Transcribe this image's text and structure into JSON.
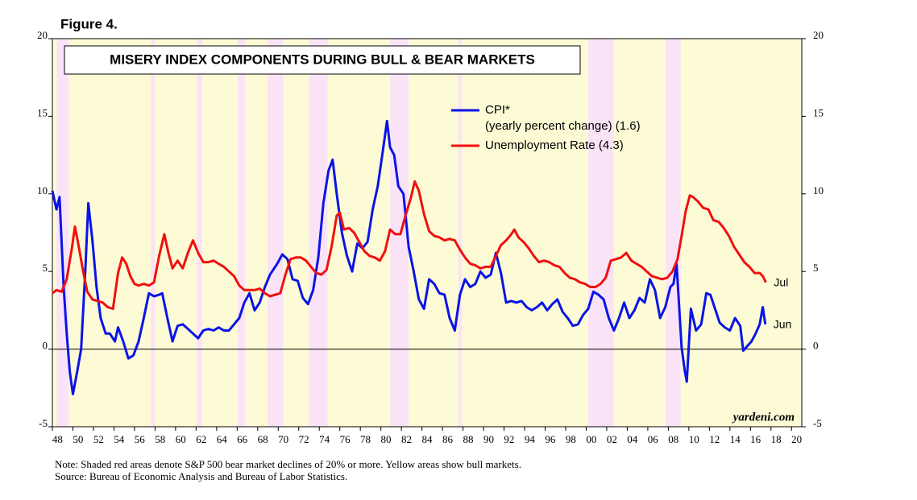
{
  "chart_data": {
    "type": "line",
    "figure_label": "Figure 4.",
    "title": "MISERY INDEX COMPONENTS DURING BULL & BEAR MARKETS",
    "watermark": "yardeni.com",
    "note": "Note: Shaded red areas denote S&P 500 bear market declines of 20% or more. Yellow areas show bull markets.",
    "source": "Source: Bureau of Economic Analysis and Bureau of Labor Statistics.",
    "bull_color": "#fdfbd6",
    "bear_color": "#fbe3f7",
    "bear_markets": [
      [
        1948.4,
        1949.6
      ],
      [
        1957.6,
        1958.0
      ],
      [
        1962.05,
        1962.6
      ],
      [
        1966.05,
        1966.8
      ],
      [
        1968.95,
        1970.5
      ],
      [
        1973.0,
        1974.8
      ],
      [
        1980.9,
        1982.7
      ],
      [
        1987.55,
        1987.9
      ],
      [
        2000.2,
        2002.7
      ],
      [
        2007.75,
        2009.2
      ]
    ],
    "xlim": [
      1948,
      2021
    ],
    "xticks": [
      {
        "value": 1948,
        "label": "48"
      },
      {
        "value": 1950,
        "label": "50"
      },
      {
        "value": 1952,
        "label": "52"
      },
      {
        "value": 1954,
        "label": "54"
      },
      {
        "value": 1956,
        "label": "56"
      },
      {
        "value": 1958,
        "label": "58"
      },
      {
        "value": 1960,
        "label": "60"
      },
      {
        "value": 1962,
        "label": "62"
      },
      {
        "value": 1964,
        "label": "64"
      },
      {
        "value": 1966,
        "label": "66"
      },
      {
        "value": 1968,
        "label": "68"
      },
      {
        "value": 1970,
        "label": "70"
      },
      {
        "value": 1972,
        "label": "72"
      },
      {
        "value": 1974,
        "label": "74"
      },
      {
        "value": 1976,
        "label": "76"
      },
      {
        "value": 1978,
        "label": "78"
      },
      {
        "value": 1980,
        "label": "80"
      },
      {
        "value": 1982,
        "label": "82"
      },
      {
        "value": 1984,
        "label": "84"
      },
      {
        "value": 1986,
        "label": "86"
      },
      {
        "value": 1988,
        "label": "88"
      },
      {
        "value": 1990,
        "label": "90"
      },
      {
        "value": 1992,
        "label": "92"
      },
      {
        "value": 1994,
        "label": "94"
      },
      {
        "value": 1996,
        "label": "96"
      },
      {
        "value": 1998,
        "label": "98"
      },
      {
        "value": 2000,
        "label": "00"
      },
      {
        "value": 2002,
        "label": "02"
      },
      {
        "value": 2004,
        "label": "04"
      },
      {
        "value": 2006,
        "label": "06"
      },
      {
        "value": 2008,
        "label": "08"
      },
      {
        "value": 2010,
        "label": "10"
      },
      {
        "value": 2012,
        "label": "12"
      },
      {
        "value": 2014,
        "label": "14"
      },
      {
        "value": 2016,
        "label": "16"
      },
      {
        "value": 2018,
        "label": "18"
      },
      {
        "value": 2020,
        "label": "20"
      }
    ],
    "ylim": [
      -5,
      20
    ],
    "yticks": [
      -5,
      0,
      5,
      10,
      15,
      20
    ],
    "y2lim": [
      -5,
      20
    ],
    "y2ticks": [
      -5,
      0,
      5,
      10,
      15,
      20
    ],
    "series": [
      {
        "name": "CPI*",
        "name_detail": "(yearly percent change) (1.6)",
        "end_label": "Jun",
        "color": "#0a14e6",
        "x": [
          1948.0,
          1948.4,
          1948.7,
          1949.1,
          1949.4,
          1949.7,
          1950.0,
          1950.4,
          1950.8,
          1951.2,
          1951.5,
          1951.9,
          1952.3,
          1952.7,
          1953.2,
          1953.6,
          1954.1,
          1954.4,
          1954.9,
          1955.4,
          1955.9,
          1956.4,
          1956.9,
          1957.4,
          1957.9,
          1958.4,
          1958.7,
          1959.2,
          1959.7,
          1960.2,
          1960.7,
          1961.2,
          1961.7,
          1962.2,
          1962.7,
          1963.2,
          1963.7,
          1964.2,
          1964.7,
          1965.2,
          1965.7,
          1966.2,
          1966.7,
          1967.2,
          1967.7,
          1968.2,
          1968.7,
          1969.2,
          1969.9,
          1970.4,
          1970.9,
          1971.4,
          1971.9,
          1972.4,
          1972.9,
          1973.4,
          1973.9,
          1974.4,
          1974.9,
          1975.3,
          1975.7,
          1976.2,
          1976.7,
          1977.2,
          1977.7,
          1978.2,
          1978.7,
          1979.2,
          1979.7,
          1980.2,
          1980.6,
          1980.9,
          1981.3,
          1981.7,
          1982.2,
          1982.7,
          1983.2,
          1983.7,
          1984.2,
          1984.7,
          1985.2,
          1985.7,
          1986.2,
          1986.7,
          1987.2,
          1987.7,
          1988.2,
          1988.7,
          1989.2,
          1989.7,
          1990.2,
          1990.7,
          1991.2,
          1991.7,
          1992.2,
          1992.7,
          1993.2,
          1993.7,
          1994.2,
          1994.7,
          1995.2,
          1995.7,
          1996.2,
          1996.7,
          1997.2,
          1997.7,
          1998.2,
          1998.7,
          1999.2,
          1999.7,
          2000.2,
          2000.7,
          2001.2,
          2001.7,
          2002.2,
          2002.7,
          2003.2,
          2003.7,
          2004.2,
          2004.7,
          2005.2,
          2005.7,
          2006.2,
          2006.7,
          2007.2,
          2007.7,
          2008.2,
          2008.5,
          2008.8,
          2009.3,
          2009.6,
          2009.8,
          2010.2,
          2010.7,
          2011.2,
          2011.7,
          2012.1,
          2012.5,
          2013.0,
          2013.5,
          2014.0,
          2014.5,
          2015.0,
          2015.3,
          2015.7,
          2016.1,
          2016.5,
          2016.9,
          2017.2,
          2017.45
        ],
        "values": [
          10.2,
          9.0,
          9.8,
          4,
          1,
          -1.5,
          -2.9,
          -1.5,
          0,
          5,
          9.4,
          7,
          4,
          2,
          1,
          1,
          0.5,
          1.4,
          0.5,
          -0.6,
          -0.4,
          0.5,
          2.0,
          3.6,
          3.4,
          3.5,
          3.6,
          2.0,
          0.5,
          1.5,
          1.6,
          1.3,
          1.0,
          0.7,
          1.2,
          1.3,
          1.2,
          1.4,
          1.2,
          1.2,
          1.6,
          2.0,
          3.0,
          3.6,
          2.5,
          3.0,
          4.0,
          4.8,
          5.5,
          6.1,
          5.8,
          4.5,
          4.4,
          3.3,
          2.9,
          3.8,
          5.9,
          9.4,
          11.5,
          12.2,
          10.0,
          7.5,
          6.0,
          5.0,
          6.8,
          6.5,
          6.9,
          9.0,
          10.5,
          12.8,
          14.7,
          13.0,
          12.5,
          10.5,
          10.0,
          6.6,
          5.0,
          3.2,
          2.6,
          4.5,
          4.2,
          3.6,
          3.5,
          2.0,
          1.2,
          3.5,
          4.5,
          4.0,
          4.2,
          5.0,
          4.6,
          4.8,
          6.2,
          4.9,
          3.0,
          3.1,
          3.0,
          3.1,
          2.7,
          2.5,
          2.7,
          3.0,
          2.5,
          2.9,
          3.2,
          2.4,
          2.0,
          1.5,
          1.6,
          2.2,
          2.6,
          3.7,
          3.5,
          3.2,
          2.0,
          1.2,
          2.0,
          3.0,
          2.0,
          2.5,
          3.3,
          3.0,
          4.5,
          3.8,
          2.0,
          2.7,
          4.0,
          4.2,
          5.5,
          0.1,
          -1.4,
          -2.1,
          2.6,
          1.2,
          1.6,
          3.6,
          3.5,
          2.7,
          1.7,
          1.4,
          1.2,
          2.0,
          1.5,
          -0.1,
          0.2,
          0.5,
          1.0,
          1.6,
          2.7,
          1.6
        ]
      },
      {
        "name": "Unemployment Rate (4.3)",
        "end_label": "Jul",
        "color": "#f01010",
        "x": [
          1948.0,
          1948.4,
          1948.9,
          1949.4,
          1949.9,
          1950.2,
          1950.6,
          1951.0,
          1951.4,
          1951.9,
          1952.4,
          1952.9,
          1953.4,
          1953.9,
          1954.4,
          1954.8,
          1955.2,
          1955.6,
          1956.0,
          1956.4,
          1956.9,
          1957.4,
          1957.9,
          1958.4,
          1958.9,
          1959.3,
          1959.7,
          1960.2,
          1960.7,
          1961.2,
          1961.7,
          1962.2,
          1962.7,
          1963.2,
          1963.7,
          1964.2,
          1964.7,
          1965.2,
          1965.7,
          1966.2,
          1966.7,
          1967.2,
          1967.7,
          1968.2,
          1968.7,
          1969.2,
          1969.7,
          1970.2,
          1970.7,
          1971.2,
          1971.7,
          1972.2,
          1972.7,
          1973.2,
          1973.7,
          1974.2,
          1974.7,
          1975.2,
          1975.7,
          1976.0,
          1976.4,
          1976.9,
          1977.4,
          1977.9,
          1978.4,
          1978.9,
          1979.4,
          1979.9,
          1980.4,
          1980.9,
          1981.4,
          1981.9,
          1982.4,
          1982.9,
          1983.3,
          1983.7,
          1984.2,
          1984.7,
          1985.2,
          1985.7,
          1986.2,
          1986.7,
          1987.2,
          1987.7,
          1988.2,
          1988.7,
          1989.2,
          1989.7,
          1990.2,
          1990.7,
          1991.2,
          1991.7,
          1992.2,
          1992.7,
          1993.0,
          1993.4,
          1993.9,
          1994.4,
          1994.9,
          1995.4,
          1995.9,
          1996.4,
          1996.9,
          1997.4,
          1997.9,
          1998.4,
          1998.9,
          1999.4,
          1999.9,
          2000.4,
          2000.9,
          2001.4,
          2001.9,
          2002.4,
          2002.9,
          2003.4,
          2003.9,
          2004.4,
          2004.9,
          2005.4,
          2005.9,
          2006.4,
          2006.9,
          2007.4,
          2007.9,
          2008.4,
          2008.9,
          2009.3,
          2009.7,
          2010.1,
          2010.4,
          2010.9,
          2011.4,
          2011.9,
          2012.4,
          2012.9,
          2013.4,
          2013.9,
          2014.4,
          2014.9,
          2015.4,
          2015.9,
          2016.4,
          2016.9,
          2017.2,
          2017.5
        ],
        "values": [
          3.6,
          3.8,
          3.7,
          4.5,
          6.5,
          7.9,
          6.5,
          5.0,
          3.7,
          3.2,
          3.1,
          3.0,
          2.7,
          2.6,
          4.9,
          5.9,
          5.5,
          4.7,
          4.2,
          4.1,
          4.2,
          4.1,
          4.3,
          6.0,
          7.4,
          6.2,
          5.2,
          5.7,
          5.2,
          6.2,
          7.0,
          6.2,
          5.6,
          5.6,
          5.7,
          5.5,
          5.3,
          5.0,
          4.7,
          4.1,
          3.8,
          3.8,
          3.8,
          3.9,
          3.6,
          3.4,
          3.5,
          3.6,
          4.8,
          5.8,
          5.9,
          5.9,
          5.7,
          5.3,
          4.9,
          4.8,
          5.1,
          6.6,
          8.6,
          8.8,
          7.7,
          7.8,
          7.5,
          6.9,
          6.3,
          6.0,
          5.9,
          5.7,
          6.3,
          7.7,
          7.4,
          7.4,
          8.6,
          9.7,
          10.8,
          10.2,
          8.7,
          7.6,
          7.3,
          7.2,
          7.0,
          7.1,
          7.0,
          6.4,
          5.9,
          5.5,
          5.4,
          5.2,
          5.3,
          5.3,
          6.0,
          6.7,
          7.0,
          7.4,
          7.7,
          7.2,
          6.9,
          6.5,
          6.0,
          5.6,
          5.7,
          5.6,
          5.4,
          5.3,
          4.9,
          4.6,
          4.5,
          4.3,
          4.2,
          4.0,
          4.0,
          4.2,
          4.6,
          5.7,
          5.8,
          5.9,
          6.2,
          5.7,
          5.5,
          5.3,
          5.0,
          4.7,
          4.6,
          4.5,
          4.6,
          5.0,
          5.8,
          7.3,
          8.9,
          9.9,
          9.8,
          9.5,
          9.1,
          9.0,
          8.3,
          8.2,
          7.8,
          7.3,
          6.6,
          6.1,
          5.6,
          5.3,
          4.9,
          4.9,
          4.7,
          4.3
        ]
      }
    ]
  }
}
